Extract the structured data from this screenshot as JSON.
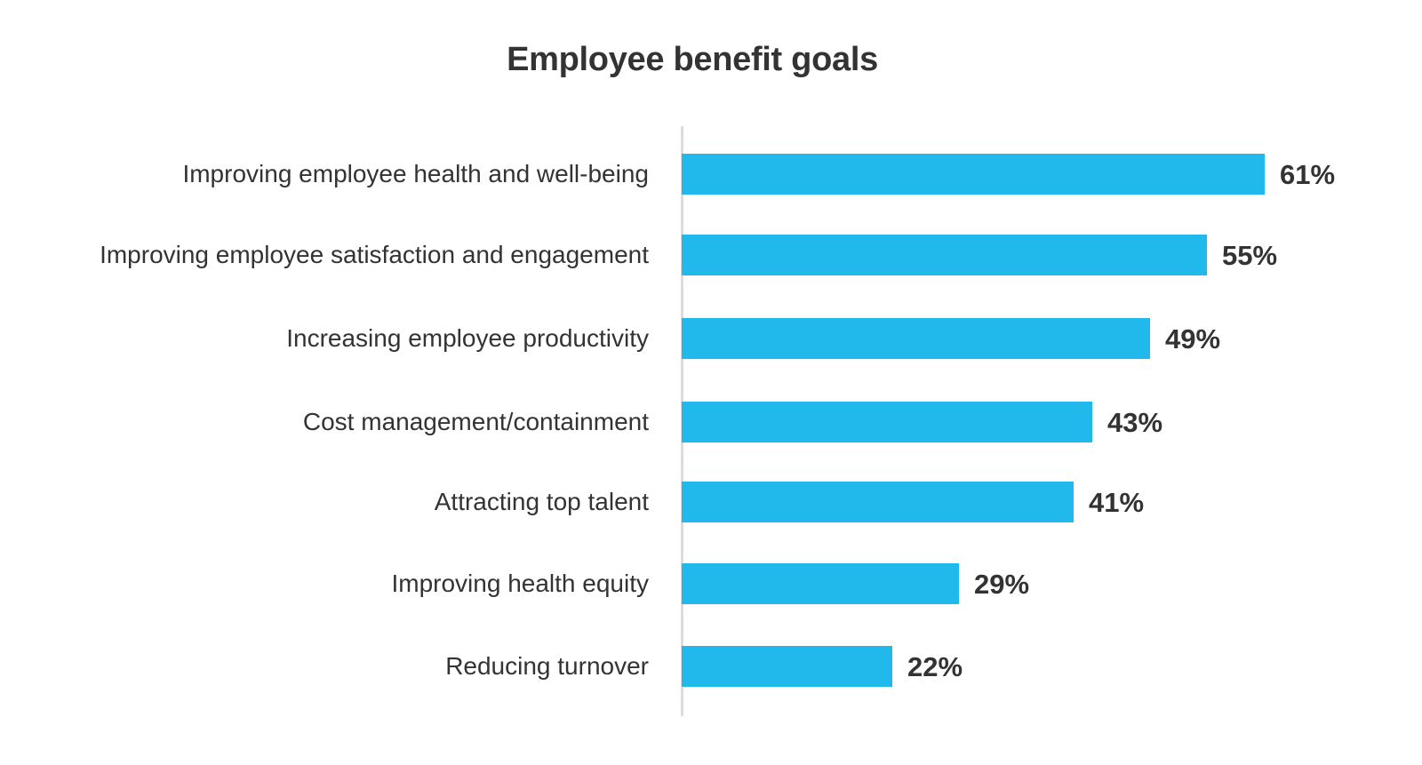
{
  "chart_data": {
    "type": "bar",
    "orientation": "horizontal",
    "title": "Employee benefit goals",
    "xlabel": "",
    "ylabel": "",
    "categories": [
      "Improving employee health and well-being",
      "Improving employee satisfaction and engagement",
      "Increasing employee productivity",
      "Cost management/containment",
      "Attracting top talent",
      "Improving health equity",
      "Reducing turnover"
    ],
    "values": [
      61,
      55,
      49,
      43,
      41,
      29,
      22
    ],
    "value_labels": [
      "61%",
      "55%",
      "49%",
      "43%",
      "41%",
      "29%",
      "22%"
    ],
    "unit": "%",
    "grid": false,
    "legend": null,
    "bar_color": "#21b9ec"
  },
  "title": "Employee benefit goals",
  "rows": [
    {
      "label": "Improving employee health and well-being",
      "value": "61%"
    },
    {
      "label": "Improving employee satisfaction and engagement",
      "value": "55%"
    },
    {
      "label": "Increasing employee productivity",
      "value": "49%"
    },
    {
      "label": "Cost management/containment",
      "value": "43%"
    },
    {
      "label": "Attracting top talent",
      "value": "41%"
    },
    {
      "label": "Improving health equity",
      "value": "29%"
    },
    {
      "label": "Reducing turnover",
      "value": "22%"
    }
  ]
}
